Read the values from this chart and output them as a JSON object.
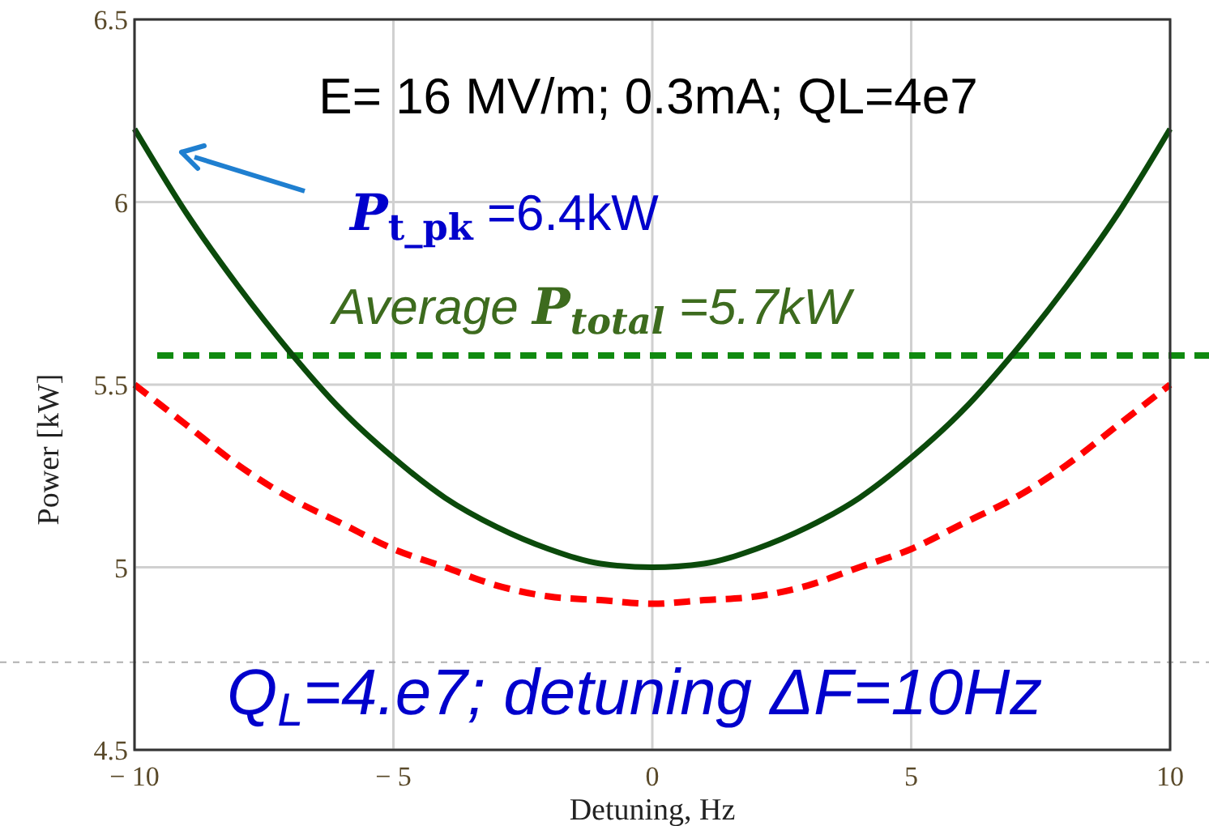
{
  "chart_data": {
    "type": "line",
    "xlabel": "Detuning, Hz",
    "ylabel": "Power [kW]",
    "x": [
      -10,
      -9,
      -8,
      -7,
      -6,
      -5,
      -4,
      -3,
      -2,
      -1,
      0,
      1,
      2,
      3,
      4,
      5,
      6,
      7,
      8,
      9,
      10
    ],
    "series": [
      {
        "color": "#0b4a0b",
        "line_style": "solid",
        "values": [
          6.2,
          5.97,
          5.77,
          5.59,
          5.43,
          5.3,
          5.19,
          5.11,
          5.05,
          5.01,
          5.0,
          5.01,
          5.05,
          5.11,
          5.19,
          5.3,
          5.43,
          5.59,
          5.77,
          5.97,
          6.2
        ]
      },
      {
        "color": "#ff0000",
        "line_style": "dashed",
        "values": [
          5.5,
          5.39,
          5.28,
          5.19,
          5.12,
          5.05,
          5.0,
          4.95,
          4.92,
          4.91,
          4.9,
          4.91,
          4.92,
          4.95,
          5.0,
          5.05,
          5.12,
          5.19,
          5.28,
          5.39,
          5.5
        ]
      }
    ],
    "xlim": [
      -10,
      10
    ],
    "xticks": [
      {
        "value": -10,
        "label": "− 10"
      },
      {
        "value": -5,
        "label": "− 5"
      },
      0,
      5,
      10
    ],
    "ylim": [
      4.5,
      6.5
    ],
    "yticks": [
      4.5,
      5,
      5.5,
      6,
      6.5
    ],
    "grid": true,
    "ref_lines": [
      {
        "axis": "y",
        "value": 5.58,
        "color": "#108a10",
        "line_style": "dashed"
      },
      {
        "axis": "y",
        "value": 4.74,
        "color": "#b0b0b0",
        "line_style": "dotted"
      }
    ],
    "annotations": [
      "E= 16 MV/m; 0.3mA; QL=4e7",
      "P$_{t_pk}$ =6.4kW",
      "Average P$_{total}$ =5.7kW",
      "Q$_{L}$=4.e7; detuning ΔF=10Hz"
    ]
  }
}
